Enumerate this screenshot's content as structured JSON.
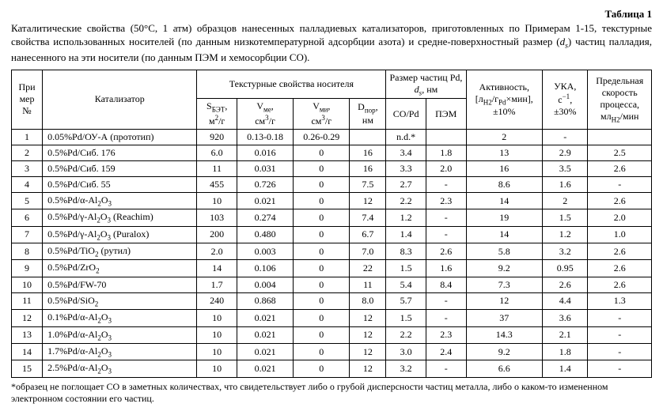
{
  "title_label": "Таблица 1",
  "caption_html": "Каталитические свойства (50°C, 1 атм) образцов нанесенных палладиевых катализаторов, приготовленных по Примерам 1-15, текстурные свойства использованных носителей (по данным низкотемпературной адсорбции азота) и средне-поверхностный размер (<i>d<sub>s</sub></i>) частиц палладия, нанесенного на эти носители (по данным ПЭМ и хемосорбции CO).",
  "headers": {
    "no": "При\nмер\n№",
    "cat": "Катализатор",
    "textural_group": "Текстурные свойства носителя",
    "sbet": "S<sub>БЭТ</sub>,<br>м<sup>2</sup>/г",
    "vme": "V<sub>ме</sub>,<br>см<sup>3</sup>/г",
    "vmi": "V<sub>ми</sub>,<br>см<sup>3</sup>/г",
    "dpor": "D<sub>пор</sub>,<br>нм",
    "size_group": "Размер частиц Pd,<br><i>d<sub>s</sub></i>, нм",
    "copd": "CO/Pd",
    "pem": "ПЭМ",
    "activity": "Активность,<br>[л<sub>H2</sub>/г<sub>Pd</sub>×мин],<br>±10%",
    "uka": "УКА,<br>с<sup>−1</sup>,<br>±30%",
    "pred": "Предельная<br>скорость<br>процесса,<br>мл<sub>H2</sub>/мин"
  },
  "rows": [
    {
      "no": "1",
      "cat": "0.05%Pd/ОУ-А (прототип)",
      "sbet": "920",
      "vme": "0.13-0.18",
      "vmi": "0.26-0.29",
      "dpor": "",
      "copd": "n.d.*",
      "pem": "",
      "act": "2",
      "uka": "-",
      "pred": ""
    },
    {
      "no": "2",
      "cat": "0.5%Pd/Сиб. 176",
      "sbet": "6.0",
      "vme": "0.016",
      "vmi": "0",
      "dpor": "16",
      "copd": "3.4",
      "pem": "1.8",
      "act": "13",
      "uka": "2.9",
      "pred": "2.5"
    },
    {
      "no": "3",
      "cat": "0.5%Pd/Сиб. 159",
      "sbet": "11",
      "vme": "0.031",
      "vmi": "0",
      "dpor": "16",
      "copd": "3.3",
      "pem": "2.0",
      "act": "16",
      "uka": "3.5",
      "pred": "2.6"
    },
    {
      "no": "4",
      "cat": "0.5%Pd/Сиб. 55",
      "sbet": "455",
      "vme": "0.726",
      "vmi": "0",
      "dpor": "7.5",
      "copd": "2.7",
      "pem": "-",
      "act": "8.6",
      "uka": "1.6",
      "pred": "-"
    },
    {
      "no": "5",
      "cat": "0.5%Pd/α-Al<sub>2</sub>O<sub>3</sub>",
      "sbet": "10",
      "vme": "0.021",
      "vmi": "0",
      "dpor": "12",
      "copd": "2.2",
      "pem": "2.3",
      "act": "14",
      "uka": "2",
      "pred": "2.6"
    },
    {
      "no": "6",
      "cat": "0.5%Pd/γ-Al<sub>2</sub>O<sub>3</sub> (Reachim)",
      "sbet": "103",
      "vme": "0.274",
      "vmi": "0",
      "dpor": "7.4",
      "copd": "1.2",
      "pem": "-",
      "act": "19",
      "uka": "1.5",
      "pred": "2.0"
    },
    {
      "no": "7",
      "cat": "0.5%Pd/γ-Al<sub>2</sub>O<sub>3</sub> (Puralox)",
      "sbet": "200",
      "vme": "0.480",
      "vmi": "0",
      "dpor": "6.7",
      "copd": "1.4",
      "pem": "-",
      "act": "14",
      "uka": "1.2",
      "pred": "1.0"
    },
    {
      "no": "8",
      "cat": "0.5%Pd/TiO<sub>2</sub> (рутил)",
      "sbet": "2.0",
      "vme": "0.003",
      "vmi": "0",
      "dpor": "7.0",
      "copd": "8.3",
      "pem": "2.6",
      "act": "5.8",
      "uka": "3.2",
      "pred": "2.6"
    },
    {
      "no": "9",
      "cat": "0.5%Pd/ZrO<sub>2</sub>",
      "sbet": "14",
      "vme": "0.106",
      "vmi": "0",
      "dpor": "22",
      "copd": "1.5",
      "pem": "1.6",
      "act": "9.2",
      "uka": "0.95",
      "pred": "2.6"
    },
    {
      "no": "10",
      "cat": "0.5%Pd/FW-70",
      "sbet": "1.7",
      "vme": "0.004",
      "vmi": "0",
      "dpor": "11",
      "copd": "5.4",
      "pem": "8.4",
      "act": "7.3",
      "uka": "2.6",
      "pred": "2.6"
    },
    {
      "no": "11",
      "cat": "0.5%Pd/SiO<sub>2</sub>",
      "sbet": "240",
      "vme": "0.868",
      "vmi": "0",
      "dpor": "8.0",
      "copd": "5.7",
      "pem": "-",
      "act": "12",
      "uka": "4.4",
      "pred": "1.3"
    },
    {
      "no": "12",
      "cat": "0.1%Pd/α-Al<sub>2</sub>O<sub>3</sub>",
      "sbet": "10",
      "vme": "0.021",
      "vmi": "0",
      "dpor": "12",
      "copd": "1.5",
      "pem": "-",
      "act": "37",
      "uka": "3.6",
      "pred": "-"
    },
    {
      "no": "13",
      "cat": "1.0%Pd/α-Al<sub>2</sub>O<sub>3</sub>",
      "sbet": "10",
      "vme": "0.021",
      "vmi": "0",
      "dpor": "12",
      "copd": "2.2",
      "pem": "2.3",
      "act": "14.3",
      "uka": "2.1",
      "pred": "-"
    },
    {
      "no": "14",
      "cat": "1.7%Pd/α-Al<sub>2</sub>O<sub>3</sub>",
      "sbet": "10",
      "vme": "0.021",
      "vmi": "0",
      "dpor": "12",
      "copd": "3.0",
      "pem": "2.4",
      "act": "9.2",
      "uka": "1.8",
      "pred": "-"
    },
    {
      "no": "15",
      "cat": "2.5%Pd/α-Al<sub>2</sub>O<sub>3</sub>",
      "sbet": "10",
      "vme": "0.021",
      "vmi": "0",
      "dpor": "12",
      "copd": "3.2",
      "pem": "-",
      "act": "6.6",
      "uka": "1.4",
      "pred": "-"
    }
  ],
  "footnote": "*образец не поглощает CO в заметных количествах, что свидетельствует либо о грубой дисперсности частиц металла, либо о каком-то измененном электронном состоянии его частиц."
}
